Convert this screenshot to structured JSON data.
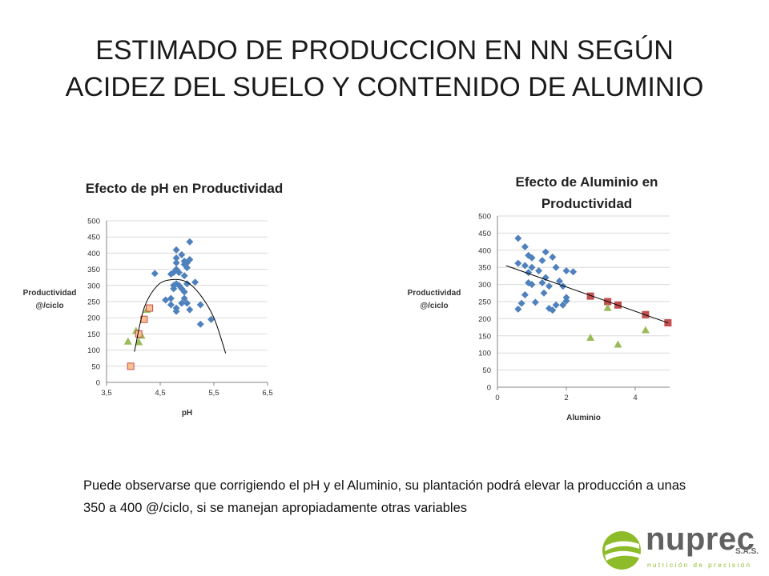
{
  "slide": {
    "title_line1": "ESTIMADO DE PRODUCCION EN NN SEGÚN",
    "title_line2": "ACIDEZ DEL SUELO Y CONTENIDO DE ALUMINIO",
    "caption": "Puede observarse que corrigiendo el pH y el Aluminio, su plantación podrá elevar la producción a unas 350 a 400 @/ciclo, si se manejan apropiadamente otras variables"
  },
  "logo": {
    "word": "nuprec",
    "suffix": "S.A.S.",
    "tagline": "nutrición de precisión",
    "colors": {
      "green": "#8dbb2a",
      "gray": "#616161"
    }
  },
  "colors": {
    "diamond": "#4f81bd",
    "triangle": "#9bbb59",
    "square_ph_fill": "#fac090",
    "square_ph_stroke": "#c0504d",
    "square_al": "#c0504d",
    "grid": "#d9d9d9",
    "axis": "#868686"
  },
  "chart_data": [
    {
      "type": "scatter",
      "title": "Efecto de pH en Productividad",
      "xlabel": "pH",
      "ylabel_line1": "Productividad",
      "ylabel_line2": "@/ciclo",
      "xlim": [
        3.5,
        6.5
      ],
      "ylim": [
        0,
        500
      ],
      "x_ticks": [
        3.5,
        4.5,
        5.5,
        6.5
      ],
      "x_tick_labels": [
        "3,5",
        "4,5",
        "5,5",
        "6,5"
      ],
      "y_ticks": [
        0,
        50,
        100,
        150,
        200,
        250,
        300,
        350,
        400,
        450,
        500
      ],
      "grid": true,
      "series": [
        {
          "marker": "diamond",
          "points": [
            [
              4.4,
              337
            ],
            [
              4.6,
              255
            ],
            [
              4.7,
              260
            ],
            [
              4.7,
              240
            ],
            [
              4.7,
              335
            ],
            [
              4.75,
              340
            ],
            [
              4.75,
              290
            ],
            [
              4.75,
              300
            ],
            [
              4.8,
              410
            ],
            [
              4.8,
              385
            ],
            [
              4.8,
              370
            ],
            [
              4.8,
              350
            ],
            [
              4.8,
              305
            ],
            [
              4.8,
              230
            ],
            [
              4.8,
              220
            ],
            [
              4.85,
              340
            ],
            [
              4.85,
              300
            ],
            [
              4.9,
              395
            ],
            [
              4.9,
              290
            ],
            [
              4.9,
              245
            ],
            [
              4.95,
              375
            ],
            [
              4.95,
              365
            ],
            [
              4.95,
              330
            ],
            [
              4.95,
              280
            ],
            [
              4.95,
              260
            ],
            [
              5.0,
              370
            ],
            [
              5.0,
              355
            ],
            [
              5.0,
              305
            ],
            [
              5.0,
              245
            ],
            [
              5.05,
              435
            ],
            [
              5.05,
              380
            ],
            [
              5.05,
              225
            ],
            [
              5.15,
              310
            ],
            [
              5.25,
              240
            ],
            [
              5.25,
              180
            ],
            [
              5.45,
              195
            ]
          ]
        },
        {
          "marker": "triangle",
          "points": [
            [
              3.9,
              127
            ],
            [
              4.05,
              160
            ],
            [
              4.1,
              125
            ],
            [
              4.15,
              145
            ],
            [
              4.25,
              225
            ]
          ]
        },
        {
          "marker": "square",
          "points": [
            [
              3.95,
              50
            ],
            [
              4.1,
              150
            ],
            [
              4.2,
              195
            ],
            [
              4.3,
              230
            ]
          ]
        }
      ],
      "trendline": {
        "shape": "curve",
        "points": [
          [
            4.02,
            95
          ],
          [
            4.2,
            230
          ],
          [
            4.45,
            300
          ],
          [
            4.72,
            318
          ],
          [
            5.0,
            310
          ],
          [
            5.25,
            270
          ],
          [
            5.5,
            200
          ],
          [
            5.72,
            90
          ]
        ]
      }
    },
    {
      "type": "scatter",
      "title_line1": "Efecto de Aluminio en",
      "title_line2": "Productividad",
      "xlabel": "Aluminio",
      "ylabel_line1": "Productividad",
      "ylabel_line2": "@/ciclo",
      "xlim": [
        0,
        5
      ],
      "ylim": [
        0,
        500
      ],
      "x_ticks": [
        0,
        2,
        4
      ],
      "x_tick_labels": [
        "0",
        "2",
        "4"
      ],
      "y_ticks": [
        0,
        50,
        100,
        150,
        200,
        250,
        300,
        350,
        400,
        450,
        500
      ],
      "grid": true,
      "series": [
        {
          "marker": "diamond",
          "points": [
            [
              0.6,
              435
            ],
            [
              0.6,
              362
            ],
            [
              0.6,
              228
            ],
            [
              0.7,
              245
            ],
            [
              0.8,
              410
            ],
            [
              0.8,
              355
            ],
            [
              0.8,
              270
            ],
            [
              0.9,
              385
            ],
            [
              0.9,
              335
            ],
            [
              0.9,
              305
            ],
            [
              1.0,
              378
            ],
            [
              1.0,
              350
            ],
            [
              1.0,
              300
            ],
            [
              1.1,
              248
            ],
            [
              1.2,
              340
            ],
            [
              1.3,
              370
            ],
            [
              1.3,
              305
            ],
            [
              1.35,
              275
            ],
            [
              1.4,
              395
            ],
            [
              1.4,
              320
            ],
            [
              1.5,
              295
            ],
            [
              1.5,
              230
            ],
            [
              1.6,
              380
            ],
            [
              1.6,
              225
            ],
            [
              1.7,
              350
            ],
            [
              1.7,
              240
            ],
            [
              1.8,
              310
            ],
            [
              1.9,
              295
            ],
            [
              1.9,
              240
            ],
            [
              2.0,
              340
            ],
            [
              2.0,
              262
            ],
            [
              2.0,
              252
            ],
            [
              2.2,
              337
            ]
          ]
        },
        {
          "marker": "square",
          "points": [
            [
              2.7,
              266
            ],
            [
              3.2,
              250
            ],
            [
              3.5,
              240
            ],
            [
              4.3,
              212
            ],
            [
              4.95,
              188
            ]
          ]
        },
        {
          "marker": "triangle",
          "points": [
            [
              2.7,
              145
            ],
            [
              3.2,
              232
            ],
            [
              3.5,
              125
            ],
            [
              4.3,
              167
            ]
          ]
        }
      ],
      "trendline": {
        "shape": "line",
        "points": [
          [
            0.25,
            355
          ],
          [
            4.95,
            188
          ]
        ]
      }
    }
  ]
}
